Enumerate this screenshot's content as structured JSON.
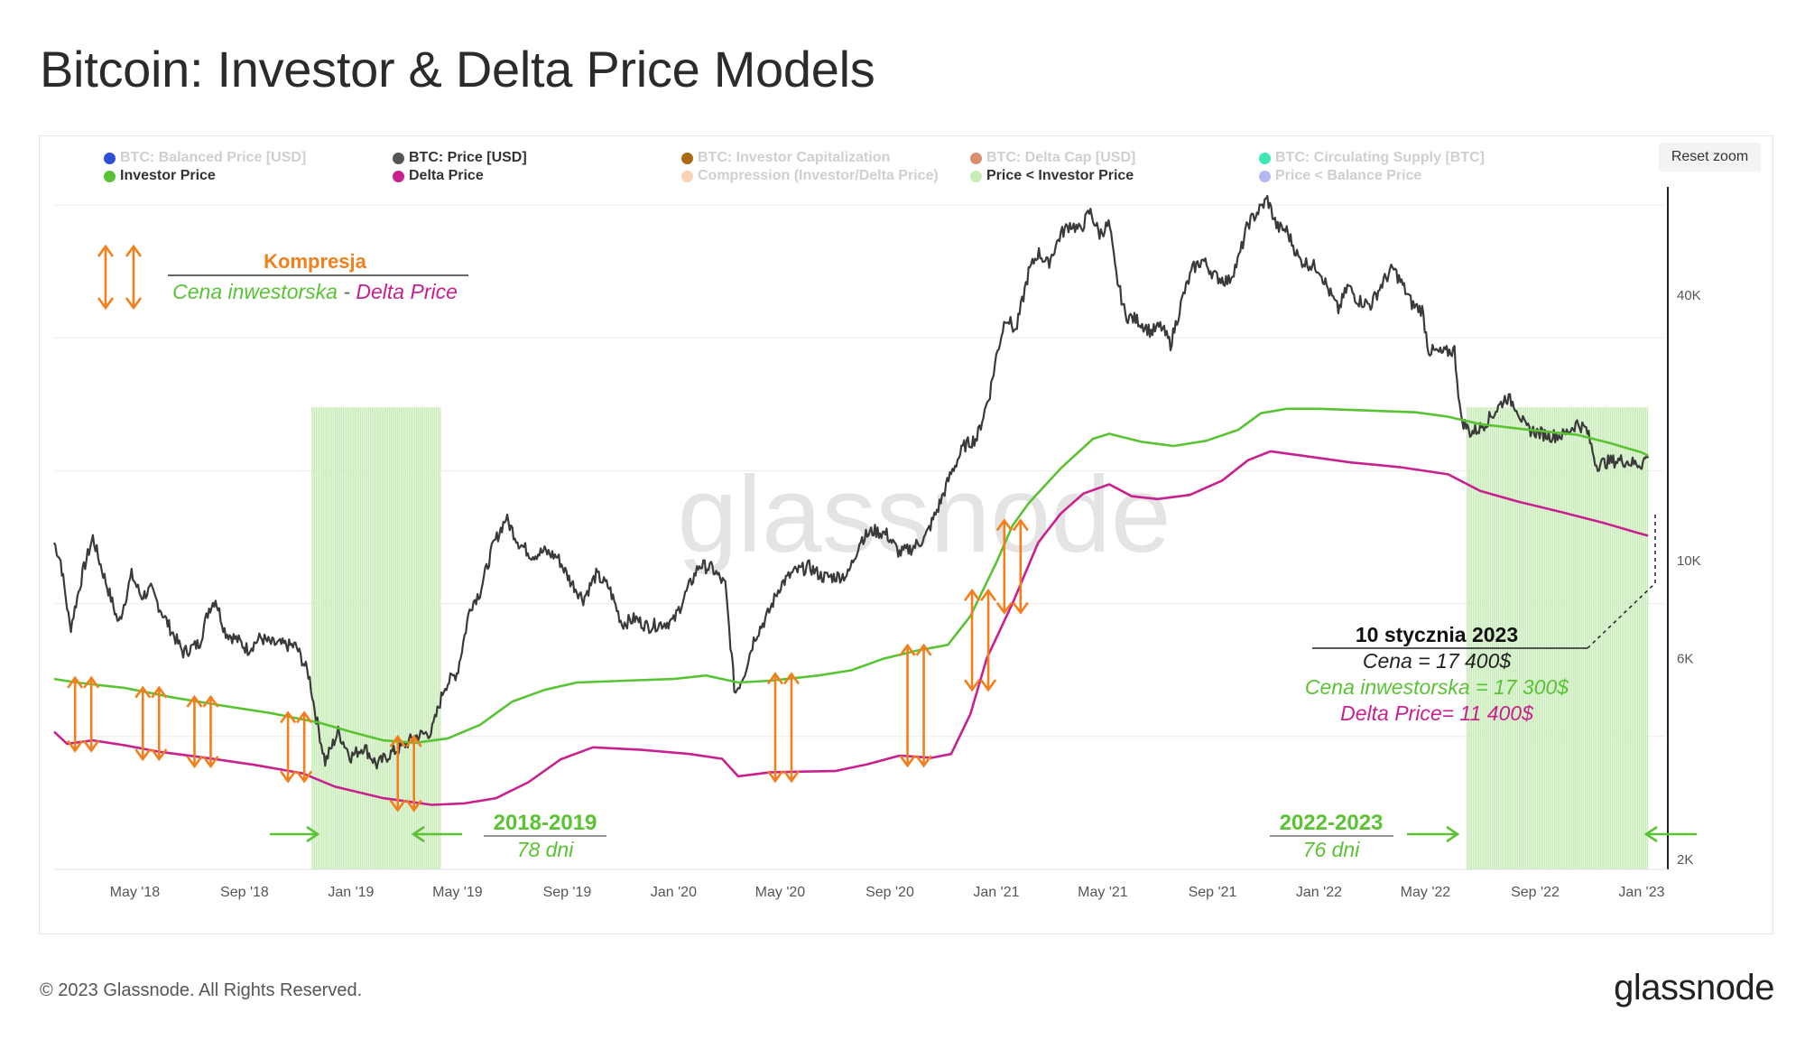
{
  "page": {
    "title": "Bitcoin: Investor & Delta Price Models",
    "copyright": "© 2023 Glassnode. All Rights Reserved.",
    "logo": "glassnode",
    "watermark": "glassnode",
    "reset_zoom_label": "Reset zoom"
  },
  "legend": [
    {
      "label": "BTC: Balanced Price [USD]",
      "color": "#2e4fd6",
      "shown": false
    },
    {
      "label": "BTC: Price [USD]",
      "color": "#555555",
      "shown": true
    },
    {
      "label": "BTC: Investor Capitalization",
      "color": "#a86a12",
      "shown": false
    },
    {
      "label": "BTC: Delta Cap [USD]",
      "color": "#d89070",
      "shown": false
    },
    {
      "label": "BTC: Circulating Supply [BTC]",
      "color": "#3ee8b5",
      "shown": false
    },
    {
      "label": "Investor Price",
      "color": "#5ac334",
      "shown": true
    },
    {
      "label": "Delta Price",
      "color": "#c8208e",
      "shown": true
    },
    {
      "label": "Compression (Investor/Delta Price)",
      "color": "#f8d3b5",
      "shown": false
    },
    {
      "label": "Price < Investor Price",
      "color": "#c8ecb8",
      "shown": true
    },
    {
      "label": "Price < Balance Price",
      "color": "#b3b9f0",
      "shown": false
    }
  ],
  "annotations": {
    "compression_title": "Kompresja",
    "compression_sub_investor": "Cena inwestorska",
    "compression_sub_sep": " - ",
    "compression_sub_delta": "Delta Price",
    "period1_label": "2018-2019",
    "period1_days": "78 dni",
    "period2_label": "2022-2023",
    "period2_days": "76 dni",
    "date_title": "10 stycznia 2023",
    "price_line": "Cena = 17 400$",
    "investor_line": "Cena inwestorska = 17 300$",
    "delta_line": "Delta Price= 11 400$"
  },
  "colors": {
    "price": "#3a3a3a",
    "investor": "#5ac334",
    "delta": "#c8208e",
    "arrow": "#f27f1b",
    "shading": "#c8ecb8",
    "grid": "#ececec",
    "watermark": "#e4e4e4"
  },
  "chart_data": {
    "type": "line",
    "title": "Bitcoin: Investor & Delta Price Models",
    "y_scale": "log",
    "x_range": [
      "2018-02",
      "2023-01"
    ],
    "ylim": [
      2000,
      69000
    ],
    "x_ticks": [
      "May '18",
      "Sep '18",
      "Jan '19",
      "May '19",
      "Sep '19",
      "Jan '20",
      "May '20",
      "Sep '20",
      "Jan '21",
      "May '21",
      "Sep '21",
      "Jan '22",
      "May '22",
      "Sep '22",
      "Jan '23"
    ],
    "y_ticks": [
      {
        "value": 2000,
        "label": "2K"
      },
      {
        "value": 6000,
        "label": "6K"
      },
      {
        "value": 10000,
        "label": "10K"
      },
      {
        "value": 40000,
        "label": "40K"
      }
    ],
    "series": [
      {
        "name": "BTC: Price [USD]",
        "points": [
          [
            2018.08,
            11000
          ],
          [
            2018.1,
            10000
          ],
          [
            2018.13,
            7000
          ],
          [
            2018.17,
            9500
          ],
          [
            2018.2,
            11300
          ],
          [
            2018.22,
            10000
          ],
          [
            2018.25,
            8500
          ],
          [
            2018.28,
            7200
          ],
          [
            2018.32,
            9300
          ],
          [
            2018.35,
            8300
          ],
          [
            2018.38,
            8600
          ],
          [
            2018.42,
            7500
          ],
          [
            2018.45,
            6800
          ],
          [
            2018.48,
            6200
          ],
          [
            2018.53,
            6500
          ],
          [
            2018.56,
            7800
          ],
          [
            2018.58,
            8200
          ],
          [
            2018.61,
            6900
          ],
          [
            2018.65,
            6600
          ],
          [
            2018.68,
            6300
          ],
          [
            2018.72,
            6700
          ],
          [
            2018.75,
            6500
          ],
          [
            2018.79,
            6450
          ],
          [
            2018.83,
            6400
          ],
          [
            2018.87,
            5500
          ],
          [
            2018.89,
            4500
          ],
          [
            2018.92,
            3500
          ],
          [
            2018.96,
            4100
          ],
          [
            2019.0,
            3600
          ],
          [
            2019.04,
            3800
          ],
          [
            2019.08,
            3450
          ],
          [
            2019.12,
            3650
          ],
          [
            2019.16,
            3800
          ],
          [
            2019.2,
            4000
          ],
          [
            2019.25,
            4100
          ],
          [
            2019.29,
            5200
          ],
          [
            2019.33,
            5600
          ],
          [
            2019.37,
            7900
          ],
          [
            2019.4,
            8500
          ],
          [
            2019.44,
            10800
          ],
          [
            2019.48,
            12500
          ],
          [
            2019.52,
            11000
          ],
          [
            2019.56,
            10300
          ],
          [
            2019.6,
            10500
          ],
          [
            2019.64,
            10200
          ],
          [
            2019.68,
            9000
          ],
          [
            2019.72,
            8200
          ],
          [
            2019.76,
            9300
          ],
          [
            2019.8,
            8700
          ],
          [
            2019.84,
            7200
          ],
          [
            2019.88,
            7400
          ],
          [
            2019.92,
            7100
          ],
          [
            2019.96,
            7200
          ],
          [
            2020.0,
            7300
          ],
          [
            2020.04,
            8500
          ],
          [
            2020.08,
            9800
          ],
          [
            2020.12,
            9600
          ],
          [
            2020.16,
            8800
          ],
          [
            2020.19,
            5000
          ],
          [
            2020.22,
            5600
          ],
          [
            2020.25,
            6700
          ],
          [
            2020.29,
            7500
          ],
          [
            2020.33,
            8800
          ],
          [
            2020.37,
            9400
          ],
          [
            2020.42,
            9700
          ],
          [
            2020.46,
            9200
          ],
          [
            2020.5,
            9200
          ],
          [
            2020.54,
            9300
          ],
          [
            2020.58,
            11200
          ],
          [
            2020.62,
            11700
          ],
          [
            2020.66,
            11500
          ],
          [
            2020.7,
            10400
          ],
          [
            2020.74,
            10700
          ],
          [
            2020.78,
            11300
          ],
          [
            2020.82,
            13200
          ],
          [
            2020.86,
            15800
          ],
          [
            2020.9,
            18200
          ],
          [
            2020.94,
            19000
          ],
          [
            2020.98,
            24000
          ],
          [
            2021.0,
            29000
          ],
          [
            2021.03,
            36000
          ],
          [
            2021.06,
            33000
          ],
          [
            2021.1,
            45000
          ],
          [
            2021.13,
            50000
          ],
          [
            2021.16,
            47000
          ],
          [
            2021.2,
            55000
          ],
          [
            2021.23,
            58000
          ],
          [
            2021.26,
            56000
          ],
          [
            2021.29,
            62000
          ],
          [
            2021.32,
            55000
          ],
          [
            2021.35,
            58000
          ],
          [
            2021.37,
            45000
          ],
          [
            2021.4,
            36000
          ],
          [
            2021.44,
            35000
          ],
          [
            2021.48,
            33000
          ],
          [
            2021.51,
            34000
          ],
          [
            2021.54,
            31000
          ],
          [
            2021.58,
            40000
          ],
          [
            2021.61,
            46000
          ],
          [
            2021.64,
            48000
          ],
          [
            2021.68,
            44000
          ],
          [
            2021.72,
            43000
          ],
          [
            2021.75,
            48000
          ],
          [
            2021.78,
            58000
          ],
          [
            2021.82,
            63000
          ],
          [
            2021.84,
            66000
          ],
          [
            2021.87,
            57000
          ],
          [
            2021.9,
            56000
          ],
          [
            2021.94,
            48000
          ],
          [
            2021.97,
            47000
          ],
          [
            2022.0,
            46000
          ],
          [
            2022.03,
            41000
          ],
          [
            2022.06,
            37000
          ],
          [
            2022.09,
            42000
          ],
          [
            2022.12,
            39000
          ],
          [
            2022.16,
            38000
          ],
          [
            2022.2,
            43000
          ],
          [
            2022.23,
            46000
          ],
          [
            2022.26,
            42000
          ],
          [
            2022.29,
            38000
          ],
          [
            2022.32,
            37000
          ],
          [
            2022.34,
            30000
          ],
          [
            2022.38,
            29500
          ],
          [
            2022.42,
            30000
          ],
          [
            2022.44,
            21000
          ],
          [
            2022.47,
            19500
          ],
          [
            2022.5,
            20000
          ],
          [
            2022.54,
            21500
          ],
          [
            2022.58,
            23500
          ],
          [
            2022.61,
            22500
          ],
          [
            2022.64,
            20000
          ],
          [
            2022.68,
            19500
          ],
          [
            2022.72,
            19200
          ],
          [
            2022.76,
            19300
          ],
          [
            2022.8,
            20500
          ],
          [
            2022.83,
            19800
          ],
          [
            2022.86,
            16500
          ],
          [
            2022.9,
            16800
          ],
          [
            2022.94,
            16900
          ],
          [
            2022.98,
            16600
          ],
          [
            2023.0,
            16600
          ],
          [
            2023.02,
            17400
          ]
        ]
      },
      {
        "name": "Investor Price",
        "points": [
          [
            2018.08,
            5400
          ],
          [
            2018.15,
            5300
          ],
          [
            2018.3,
            5150
          ],
          [
            2018.45,
            4900
          ],
          [
            2018.6,
            4700
          ],
          [
            2018.75,
            4520
          ],
          [
            2018.9,
            4300
          ],
          [
            2019.0,
            4100
          ],
          [
            2019.1,
            3920
          ],
          [
            2019.2,
            3870
          ],
          [
            2019.3,
            3960
          ],
          [
            2019.4,
            4250
          ],
          [
            2019.5,
            4800
          ],
          [
            2019.6,
            5100
          ],
          [
            2019.7,
            5300
          ],
          [
            2019.85,
            5350
          ],
          [
            2020.0,
            5400
          ],
          [
            2020.1,
            5500
          ],
          [
            2020.2,
            5300
          ],
          [
            2020.3,
            5350
          ],
          [
            2020.45,
            5500
          ],
          [
            2020.55,
            5650
          ],
          [
            2020.65,
            6000
          ],
          [
            2020.75,
            6250
          ],
          [
            2020.85,
            6450
          ],
          [
            2020.92,
            7500
          ],
          [
            2021.0,
            9900
          ],
          [
            2021.05,
            12000
          ],
          [
            2021.1,
            13500
          ],
          [
            2021.2,
            16200
          ],
          [
            2021.3,
            18900
          ],
          [
            2021.35,
            19400
          ],
          [
            2021.45,
            18600
          ],
          [
            2021.55,
            18200
          ],
          [
            2021.65,
            18700
          ],
          [
            2021.75,
            19800
          ],
          [
            2021.82,
            21600
          ],
          [
            2021.9,
            22100
          ],
          [
            2022.0,
            22100
          ],
          [
            2022.15,
            21900
          ],
          [
            2022.3,
            21700
          ],
          [
            2022.4,
            21200
          ],
          [
            2022.5,
            20400
          ],
          [
            2022.65,
            19800
          ],
          [
            2022.8,
            19300
          ],
          [
            2022.9,
            18500
          ],
          [
            2023.0,
            17600
          ],
          [
            2023.02,
            17300
          ]
        ]
      },
      {
        "name": "Delta Price",
        "points": [
          [
            2018.08,
            4100
          ],
          [
            2018.12,
            3850
          ],
          [
            2018.2,
            3920
          ],
          [
            2018.3,
            3820
          ],
          [
            2018.4,
            3700
          ],
          [
            2018.55,
            3580
          ],
          [
            2018.7,
            3450
          ],
          [
            2018.85,
            3300
          ],
          [
            2018.95,
            3080
          ],
          [
            2019.1,
            2900
          ],
          [
            2019.25,
            2800
          ],
          [
            2019.35,
            2820
          ],
          [
            2019.45,
            2900
          ],
          [
            2019.55,
            3150
          ],
          [
            2019.65,
            3550
          ],
          [
            2019.75,
            3780
          ],
          [
            2019.9,
            3730
          ],
          [
            2020.05,
            3650
          ],
          [
            2020.15,
            3560
          ],
          [
            2020.2,
            3250
          ],
          [
            2020.3,
            3320
          ],
          [
            2020.4,
            3330
          ],
          [
            2020.5,
            3340
          ],
          [
            2020.6,
            3460
          ],
          [
            2020.7,
            3620
          ],
          [
            2020.8,
            3580
          ],
          [
            2020.86,
            3650
          ],
          [
            2020.92,
            4500
          ],
          [
            2020.97,
            6000
          ],
          [
            2021.05,
            8000
          ],
          [
            2021.13,
            11000
          ],
          [
            2021.2,
            12800
          ],
          [
            2021.27,
            14200
          ],
          [
            2021.35,
            14900
          ],
          [
            2021.42,
            14000
          ],
          [
            2021.5,
            13800
          ],
          [
            2021.6,
            14100
          ],
          [
            2021.7,
            15200
          ],
          [
            2021.78,
            16900
          ],
          [
            2021.85,
            17700
          ],
          [
            2021.95,
            17300
          ],
          [
            2022.1,
            16700
          ],
          [
            2022.25,
            16300
          ],
          [
            2022.4,
            15700
          ],
          [
            2022.5,
            14400
          ],
          [
            2022.62,
            13600
          ],
          [
            2022.75,
            12900
          ],
          [
            2022.88,
            12200
          ],
          [
            2023.0,
            11500
          ],
          [
            2023.02,
            11400
          ]
        ]
      }
    ],
    "shaded_periods": [
      {
        "label": "2018-2019",
        "days": 78,
        "start": 2018.88,
        "end": 2019.28
      },
      {
        "label": "2022-2023",
        "days": 76,
        "start": 2022.46,
        "end": 2023.02
      }
    ],
    "compression_markers": [
      2018.17,
      2018.38,
      2018.54,
      2018.83,
      2019.17,
      2020.34,
      2020.75,
      2020.95,
      2021.05
    ]
  }
}
